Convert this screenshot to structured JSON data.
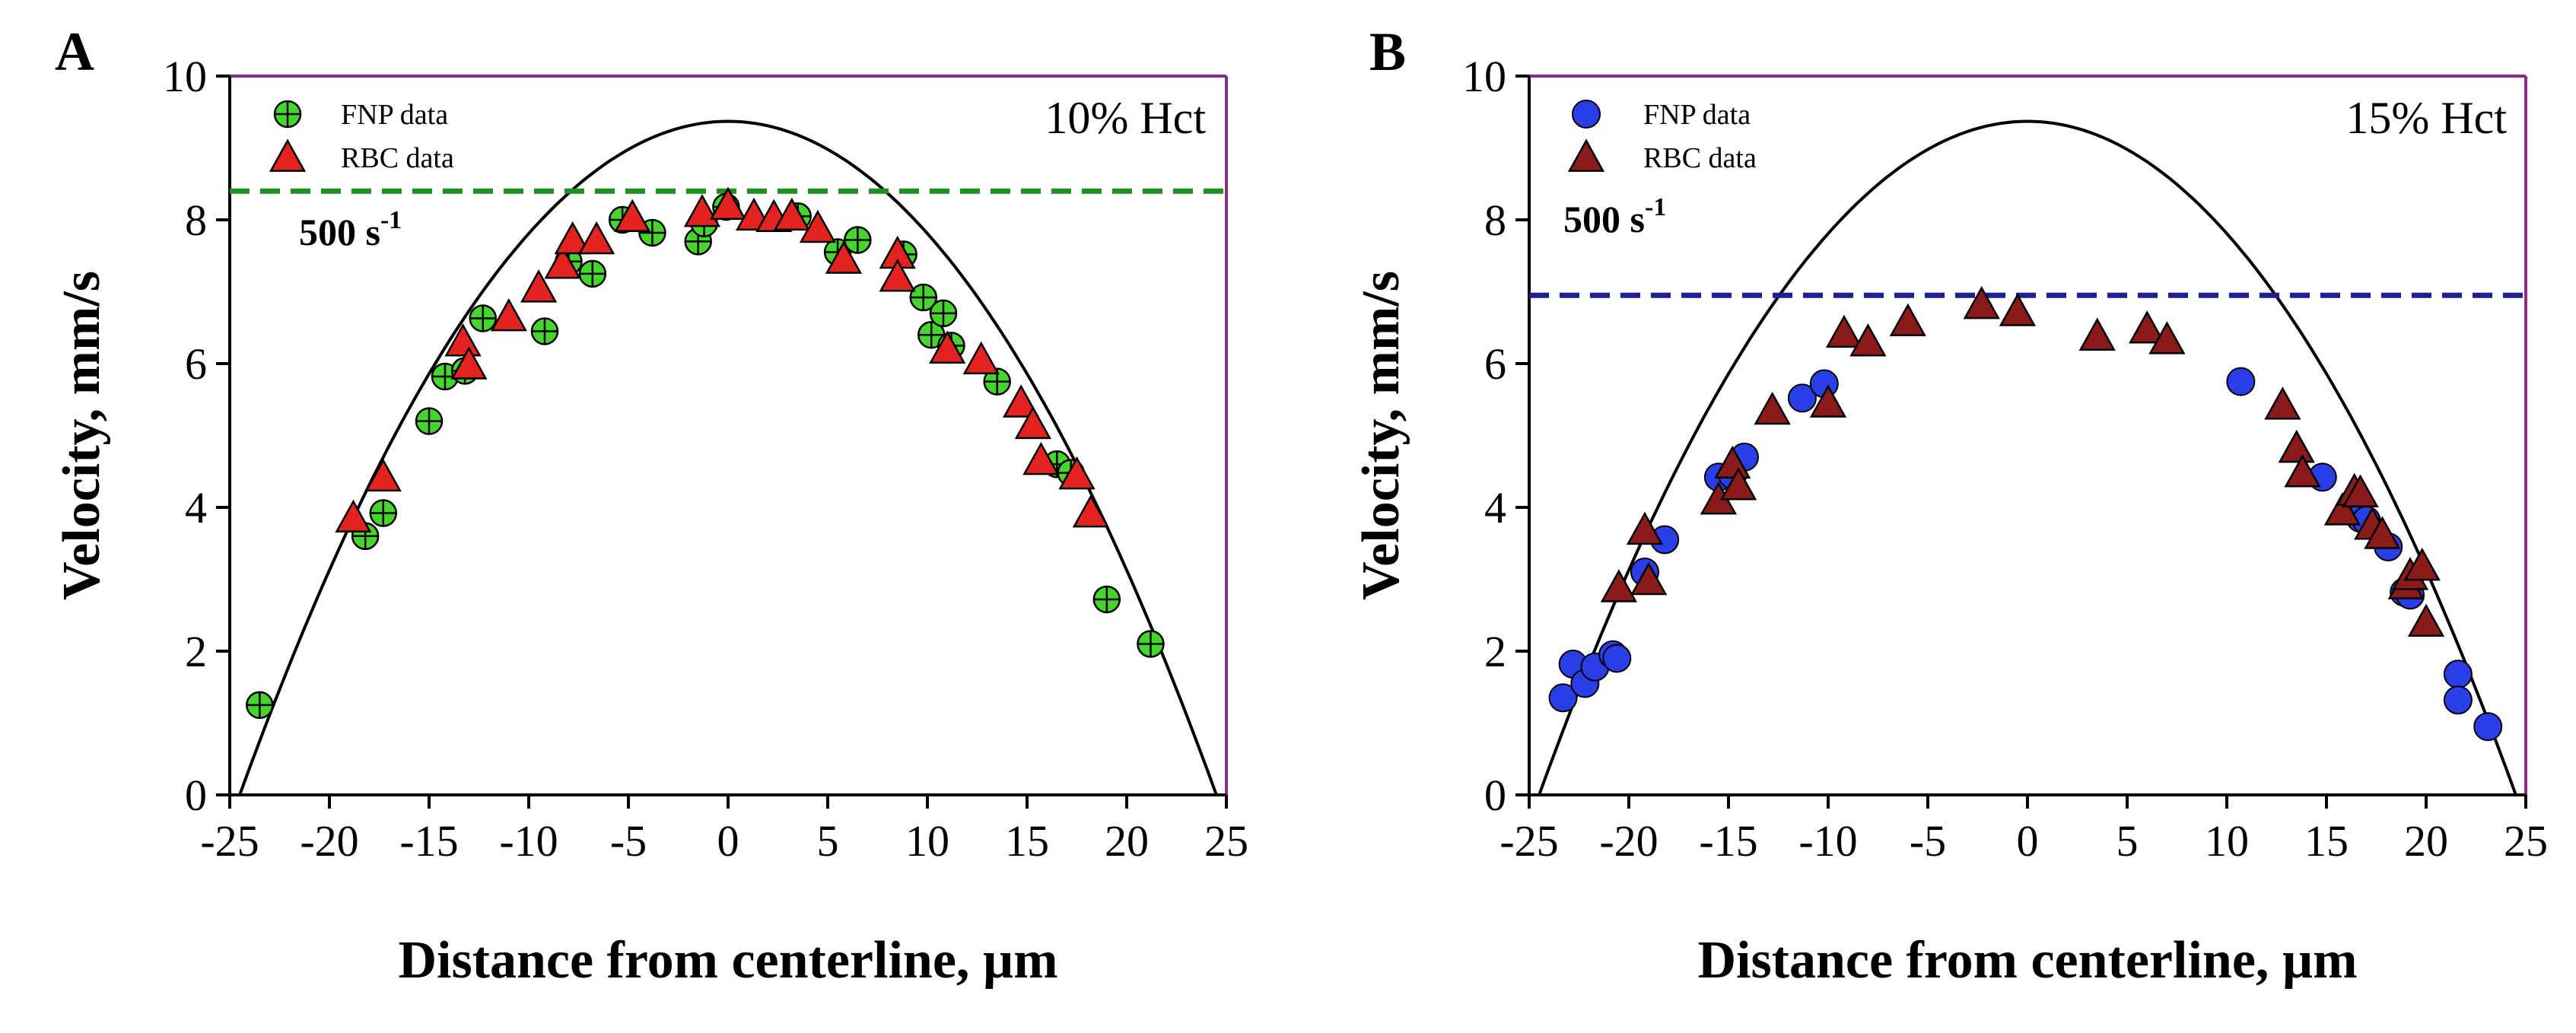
{
  "chart_data": [
    {
      "type": "scatter",
      "panel_letter": "A",
      "annotation": "10% Hct",
      "shear_label": "500 s",
      "shear_exponent": "-1",
      "xlabel": "Distance from centerline, µm",
      "ylabel": "Velocity, mm/s",
      "xlim": [
        -25,
        25
      ],
      "ylim": [
        0,
        10
      ],
      "xticks": [
        "-25",
        "-20",
        "-15",
        "-10",
        "-5",
        "0",
        "5",
        "10",
        "15",
        "20",
        "25"
      ],
      "yticks": [
        "0",
        "2",
        "4",
        "6",
        "8",
        "10"
      ],
      "reference_line": {
        "y": 8.4,
        "color": "#1f8f1f",
        "style": "dashed"
      },
      "parabola": {
        "vmax": 9.37,
        "radius": 24.5,
        "color": "#000000"
      },
      "series": [
        {
          "name": "FNP data",
          "marker": "circle-cross",
          "color": "#44d62c",
          "points": [
            [
              -23.5,
              1.25
            ],
            [
              -18.2,
              3.6
            ],
            [
              -17.3,
              3.92
            ],
            [
              -15,
              5.2
            ],
            [
              -14.2,
              5.82
            ],
            [
              -13.2,
              5.9
            ],
            [
              -12.3,
              6.63
            ],
            [
              -9.2,
              6.45
            ],
            [
              -8,
              7.42
            ],
            [
              -6.8,
              7.25
            ],
            [
              -5.3,
              8.0
            ],
            [
              -3.8,
              7.82
            ],
            [
              -1.5,
              7.7
            ],
            [
              -1.2,
              7.95
            ],
            [
              -0.1,
              8.18
            ],
            [
              3.5,
              8.05
            ],
            [
              5.5,
              7.55
            ],
            [
              6.5,
              7.72
            ],
            [
              8.8,
              7.52
            ],
            [
              9.8,
              6.92
            ],
            [
              10.2,
              6.4
            ],
            [
              10.8,
              6.7
            ],
            [
              11.2,
              6.25
            ],
            [
              13.5,
              5.75
            ],
            [
              16.5,
              4.6
            ],
            [
              17.2,
              4.48
            ],
            [
              19,
              2.72
            ],
            [
              21.2,
              2.1
            ]
          ]
        },
        {
          "name": "RBC data",
          "marker": "triangle",
          "color": "#e3231f",
          "points": [
            [
              -18.8,
              3.85
            ],
            [
              -17.3,
              4.42
            ],
            [
              -13.3,
              6.3
            ],
            [
              -13,
              5.98
            ],
            [
              -11,
              6.65
            ],
            [
              -9.5,
              7.05
            ],
            [
              -8.3,
              7.38
            ],
            [
              -7.8,
              7.72
            ],
            [
              -6.6,
              7.72
            ],
            [
              -4.8,
              8.03
            ],
            [
              -1.3,
              8.1
            ],
            [
              0,
              8.2
            ],
            [
              1.3,
              8.05
            ],
            [
              2.3,
              8.03
            ],
            [
              3.2,
              8.05
            ],
            [
              4.5,
              7.88
            ],
            [
              5.8,
              7.45
            ],
            [
              8.5,
              7.52
            ],
            [
              8.5,
              7.2
            ],
            [
              11,
              6.2
            ],
            [
              12.7,
              6.05
            ],
            [
              14.7,
              5.45
            ],
            [
              15.3,
              5.15
            ],
            [
              15.7,
              4.65
            ],
            [
              17.5,
              4.45
            ],
            [
              18.2,
              3.92
            ]
          ]
        }
      ]
    },
    {
      "type": "scatter",
      "panel_letter": "B",
      "annotation": "15% Hct",
      "shear_label": "500 s",
      "shear_exponent": "-1",
      "xlabel": "Distance from centerline, µm",
      "ylabel": "Velocity, mm/s",
      "xlim": [
        -25,
        25
      ],
      "ylim": [
        0,
        10
      ],
      "xticks": [
        "-25",
        "-20",
        "-15",
        "-10",
        "-5",
        "0",
        "5",
        "10",
        "15",
        "20",
        "25"
      ],
      "yticks": [
        "0",
        "2",
        "4",
        "6",
        "8",
        "10"
      ],
      "reference_line": {
        "y": 6.95,
        "color": "#1f1f8f",
        "style": "dashed"
      },
      "parabola": {
        "vmax": 9.37,
        "radius": 24.5,
        "color": "#000000"
      },
      "series": [
        {
          "name": "FNP data",
          "marker": "circle",
          "color": "#2a3ee8",
          "points": [
            [
              -23.3,
              1.35
            ],
            [
              -22.8,
              1.82
            ],
            [
              -22.2,
              1.55
            ],
            [
              -21.7,
              1.78
            ],
            [
              -20.8,
              1.95
            ],
            [
              -20.6,
              1.9
            ],
            [
              -19.2,
              3.1
            ],
            [
              -18.2,
              3.55
            ],
            [
              -15.5,
              4.42
            ],
            [
              -14.8,
              4.45
            ],
            [
              -14.2,
              4.7
            ],
            [
              -11.3,
              5.52
            ],
            [
              -10.2,
              5.72
            ],
            [
              10.7,
              5.75
            ],
            [
              14.8,
              4.42
            ],
            [
              16.7,
              3.85
            ],
            [
              17,
              3.82
            ],
            [
              18.1,
              3.45
            ],
            [
              18.9,
              2.82
            ],
            [
              19.2,
              2.78
            ],
            [
              21.6,
              1.68
            ],
            [
              21.6,
              1.32
            ],
            [
              23.1,
              0.95
            ]
          ]
        },
        {
          "name": "RBC data",
          "marker": "triangle",
          "color": "#8b1a1a",
          "points": [
            [
              -20.5,
              2.88
            ],
            [
              -19.2,
              3.68
            ],
            [
              -19,
              2.98
            ],
            [
              -15.5,
              4.1
            ],
            [
              -14.8,
              4.6
            ],
            [
              -14.5,
              4.3
            ],
            [
              -12.8,
              5.35
            ],
            [
              -10,
              5.45
            ],
            [
              -9.2,
              6.42
            ],
            [
              -8,
              6.3
            ],
            [
              -6,
              6.58
            ],
            [
              -2.3,
              6.82
            ],
            [
              -0.5,
              6.72
            ],
            [
              3.5,
              6.38
            ],
            [
              6,
              6.48
            ],
            [
              7,
              6.33
            ],
            [
              12.8,
              5.42
            ],
            [
              13.5,
              4.82
            ],
            [
              13.8,
              4.48
            ],
            [
              15.8,
              3.95
            ],
            [
              16.4,
              4.22
            ],
            [
              16.7,
              4.2
            ],
            [
              17.3,
              3.75
            ],
            [
              17.8,
              3.62
            ],
            [
              19,
              2.92
            ],
            [
              19.2,
              3.05
            ],
            [
              19.8,
              3.18
            ],
            [
              20.0,
              2.4
            ]
          ]
        }
      ]
    }
  ]
}
